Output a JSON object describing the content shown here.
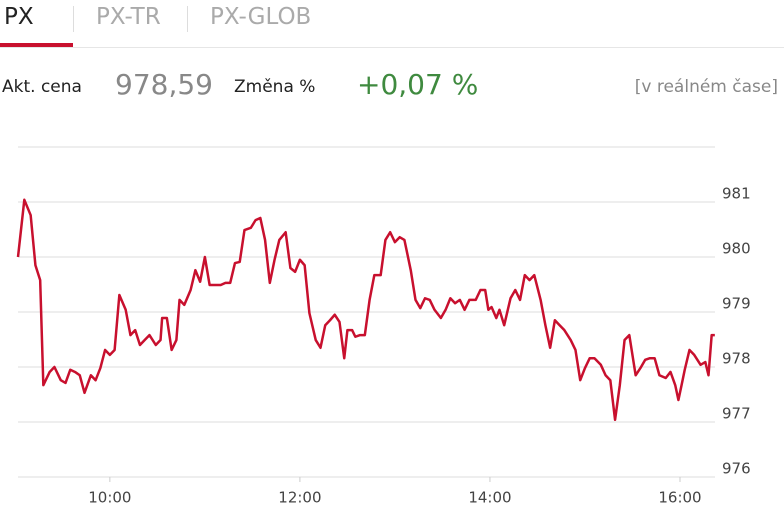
{
  "tabs": [
    "PX",
    "PX-TR",
    "PX-GLOB"
  ],
  "quote": {
    "price_label": "Akt. cena",
    "price": "978,59",
    "change_label": "Změna %",
    "change": "+0,07 %",
    "note": "[v reálném čase]"
  },
  "chart_data": {
    "type": "line",
    "x": [
      542,
      546,
      550,
      553,
      556,
      558,
      562,
      565,
      569,
      572,
      575,
      578,
      581,
      584,
      588,
      591,
      594,
      597,
      600,
      603,
      606,
      610,
      613,
      616,
      619,
      622,
      625,
      629,
      632,
      633,
      636,
      639,
      642,
      644,
      647,
      651,
      654,
      657,
      660,
      663,
      666,
      670,
      673,
      676,
      679,
      682,
      685,
      689,
      692,
      695,
      698,
      701,
      704,
      707,
      711,
      714,
      717,
      720,
      723,
      726,
      730,
      733,
      736,
      739,
      742,
      745,
      748,
      750,
      753,
      755,
      758,
      761,
      764,
      767,
      771,
      774,
      777,
      780,
      783,
      786,
      790,
      793,
      796,
      799,
      802,
      805,
      809,
      812,
      815,
      818,
      821,
      824,
      827,
      831,
      834,
      837,
      839,
      841,
      844,
      846,
      849,
      853,
      856,
      859,
      862,
      865,
      868,
      872,
      875,
      878,
      881,
      884,
      887,
      891,
      894,
      897,
      900,
      903,
      906,
      910,
      913,
      916,
      919,
      922,
      925,
      928,
      932,
      935,
      938,
      941,
      944,
      947,
      951,
      954,
      957,
      959,
      961,
      963,
      966,
      969,
      973,
      976,
      978,
      980,
      982
    ],
    "series": [
      {
        "color": "#c8102e",
        "values": [
          980.0,
          981.04,
          980.76,
          979.85,
          979.58,
          977.67,
          977.91,
          978.0,
          977.76,
          977.71,
          977.95,
          977.91,
          977.85,
          977.53,
          977.85,
          977.76,
          977.98,
          978.31,
          978.22,
          978.31,
          979.31,
          979.04,
          978.58,
          978.67,
          978.4,
          978.49,
          978.58,
          978.4,
          978.49,
          978.89,
          978.89,
          978.31,
          978.49,
          979.22,
          979.13,
          979.4,
          979.76,
          979.55,
          980.0,
          979.49,
          979.49,
          979.49,
          979.53,
          979.53,
          979.89,
          979.91,
          980.49,
          980.53,
          980.67,
          980.71,
          980.31,
          979.53,
          979.95,
          980.31,
          980.45,
          979.8,
          979.73,
          979.95,
          979.85,
          978.98,
          978.49,
          978.35,
          978.76,
          978.85,
          978.95,
          978.82,
          978.16,
          978.67,
          978.67,
          978.55,
          978.58,
          978.58,
          979.22,
          979.67,
          979.67,
          980.31,
          980.45,
          980.27,
          980.36,
          980.31,
          979.76,
          979.22,
          979.07,
          979.25,
          979.22,
          979.04,
          978.89,
          979.04,
          979.25,
          979.16,
          979.22,
          979.04,
          979.22,
          979.22,
          979.4,
          979.4,
          979.04,
          979.09,
          978.89,
          979.04,
          978.76,
          979.25,
          979.4,
          979.22,
          979.67,
          979.58,
          979.67,
          979.22,
          978.76,
          978.35,
          978.85,
          978.76,
          978.67,
          978.49,
          978.31,
          977.76,
          977.98,
          978.16,
          978.16,
          978.04,
          977.85,
          977.76,
          977.04,
          977.67,
          978.49,
          978.58,
          977.85,
          977.98,
          978.13,
          978.16,
          978.16,
          977.85,
          977.8,
          977.91,
          977.67,
          977.4,
          977.67,
          977.95,
          978.31,
          978.22,
          978.04,
          978.09,
          977.85,
          978.58,
          978.58
        ]
      }
    ],
    "xlim": [
      542,
      984
    ],
    "xticks": [
      {
        "value": 600,
        "label": "10:00"
      },
      {
        "value": 720,
        "label": "12:00"
      },
      {
        "value": 840,
        "label": "14:00"
      },
      {
        "value": 960,
        "label": "16:00"
      }
    ],
    "ylim": [
      976,
      982
    ],
    "yticks": [
      976,
      977,
      978,
      979,
      980,
      981
    ],
    "grid": true
  }
}
